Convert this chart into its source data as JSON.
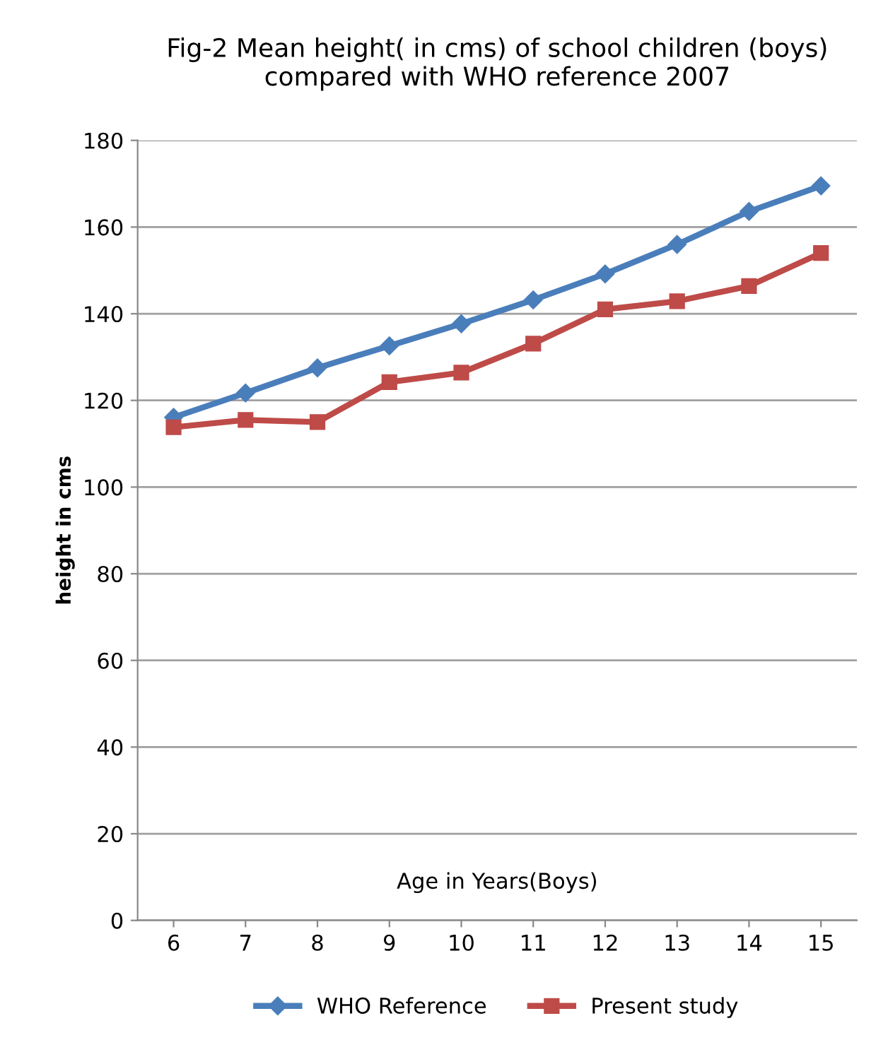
{
  "chart_data": {
    "type": "line",
    "title": "Fig-2 Mean height( in cms) of school children (boys)\ncompared with WHO reference 2007",
    "xlabel": "Age in Years(Boys)",
    "ylabel": "height in cms",
    "categories": [
      "6",
      "7",
      "8",
      "9",
      "10",
      "11",
      "12",
      "13",
      "14",
      "15"
    ],
    "series": [
      {
        "name": "WHO Reference",
        "color": "#4a7ebb",
        "marker": "diamond",
        "values": [
          116.1,
          121.7,
          127.5,
          132.6,
          137.7,
          143.2,
          149.2,
          156,
          163.6,
          169.5
        ]
      },
      {
        "name": "Present study",
        "color": "#be4b48",
        "marker": "square",
        "values": [
          113.8,
          115.5,
          115,
          124.2,
          126.4,
          133.1,
          141,
          142.9,
          146.4,
          154
        ]
      }
    ],
    "ylim": [
      0,
      180
    ],
    "yticks": [
      0,
      20,
      40,
      60,
      80,
      100,
      120,
      140,
      160,
      180
    ],
    "grid": "y",
    "legend": "bottom",
    "line_style": "solid"
  }
}
